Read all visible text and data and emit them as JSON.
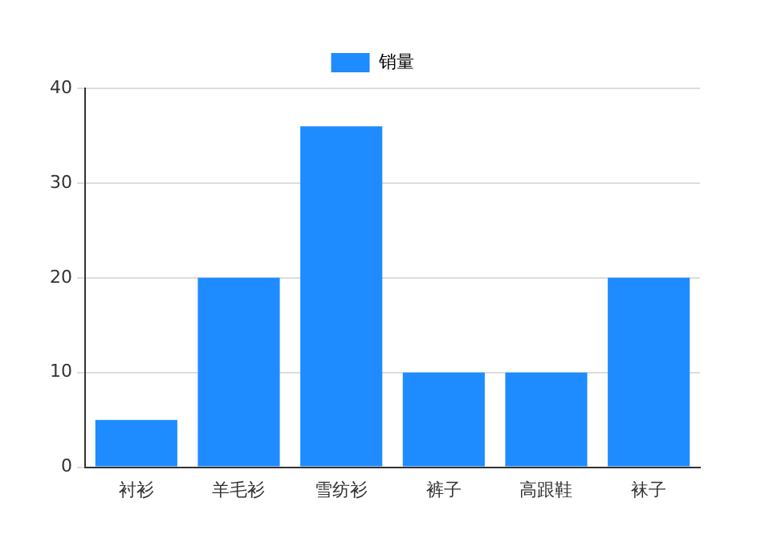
{
  "chart_data": {
    "type": "bar",
    "categories": [
      "衬衫",
      "羊毛衫",
      "雪纺衫",
      "裤子",
      "高跟鞋",
      "袜子"
    ],
    "series": [
      {
        "name": "销量",
        "color": "#1e8cff",
        "values": [
          5,
          20,
          36,
          10,
          10,
          20
        ]
      }
    ],
    "ylim": [
      0,
      40
    ],
    "yticks": [
      0,
      10,
      20,
      30,
      40
    ],
    "grid": "y",
    "legend": "top"
  }
}
